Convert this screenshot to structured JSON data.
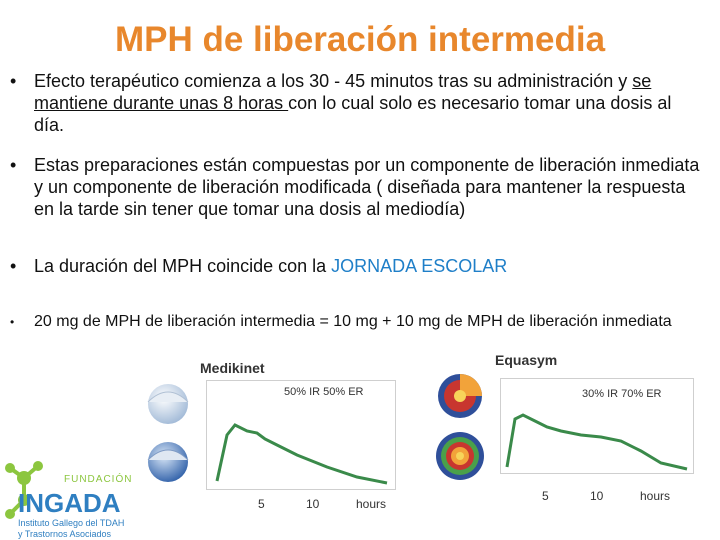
{
  "title": "MPH de liberación intermedia",
  "bullets": {
    "b1_pre": "Efecto terapéutico comienza a los 30 - 45 minutos tras su administración y ",
    "b1_underline": "se mantiene durante unas 8 horas ",
    "b1_post": "con lo cual solo es necesario tomar una dosis al día.",
    "b2": "Estas preparaciones están compuestas por un componente de liberación inmediata y un componente de liberación modificada ( diseñada para mantener la respuesta en la tarde sin tener que tomar una dosis al mediodía)",
    "b3_pre": "La duración del MPH coincide con la ",
    "b3_highlight": "JORNADA ESCOLAR",
    "b4": "20 mg de MPH de liberación intermedia =  10 mg + 10 mg de MPH de liberación inmediata",
    "bullet_symbol": "•"
  },
  "medikinet": {
    "name": "Medikinet",
    "ratio": "50% IR 50% ER",
    "ticks": [
      "5",
      "10",
      "hours"
    ]
  },
  "equasym": {
    "name": "Equasym",
    "ratio": "30% IR 70% ER",
    "ticks": [
      "5",
      "10",
      "hours"
    ]
  },
  "logo": {
    "line1": "FUNDACIÓN",
    "line2": "INGADA",
    "line3": "Instituto Gallego del TDAH",
    "line4": "y Trastornos Asociados"
  },
  "colors": {
    "title": "#e8872c",
    "curve": "#3a8a4a",
    "highlight": "#1f7fc8",
    "logo_green": "#8cc63f",
    "logo_blue": "#2f7fc1"
  }
}
